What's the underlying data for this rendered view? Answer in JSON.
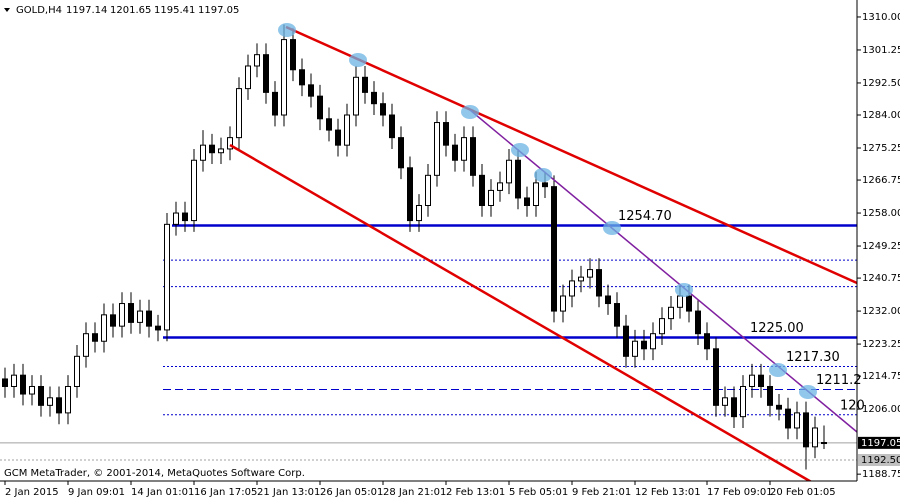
{
  "chart_data": {
    "type": "candlestick",
    "symbol": "GOLD,H4",
    "footer": "GCM MetaTrader, © 2001-2014, MetaQuotes Software Corp.",
    "categories": [
      "2 Jan 2015",
      null,
      null,
      null,
      null,
      null,
      null,
      "9 Jan 09:01",
      null,
      null,
      null,
      null,
      null,
      null,
      "14 Jan 01:01",
      null,
      null,
      null,
      null,
      null,
      null,
      "16 Jan 17:05",
      null,
      null,
      null,
      null,
      null,
      null,
      "21 Jan 13:01",
      null,
      null,
      null,
      null,
      null,
      null,
      "26 Jan 05:01",
      null,
      null,
      null,
      null,
      null,
      null,
      "28 Jan 21:01",
      null,
      null,
      null,
      null,
      null,
      null,
      "2 Feb 13:01",
      null,
      null,
      null,
      null,
      null,
      null,
      "5 Feb 05:01",
      null,
      null,
      null,
      null,
      null,
      null,
      "9 Feb 21:01",
      null,
      null,
      null,
      null,
      null,
      null,
      "12 Feb 13:01",
      null,
      null,
      null,
      null,
      null,
      null,
      null,
      "17 Feb 09:01",
      null,
      null,
      null,
      null,
      null,
      null,
      "20 Feb 01:05",
      null,
      null,
      null,
      null,
      null,
      null
    ],
    "open": [
      1214,
      1212,
      1215,
      1210,
      1212,
      1207,
      1209,
      1205,
      1212,
      1220,
      1226,
      1224,
      1231,
      1228,
      1234,
      1229,
      1232,
      1228,
      1227,
      1255,
      1258,
      1256,
      1272,
      1276,
      1274,
      1275,
      1278,
      1291,
      1297,
      1300,
      1290,
      1284,
      1304,
      1296,
      1292,
      1289,
      1283,
      1280,
      1276,
      1284,
      1294,
      1290,
      1287,
      1284,
      1278,
      1270,
      1256,
      1260,
      1268,
      1282,
      1276,
      1272,
      1278,
      1268,
      1260,
      1264,
      1266,
      1272,
      1262,
      1260,
      1266,
      1265,
      1232,
      1236,
      1240,
      1241,
      1243,
      1236,
      1234,
      1228,
      1220,
      1224,
      1222,
      1226,
      1230,
      1233,
      1236,
      1232,
      1226,
      1222,
      1207,
      1209,
      1204,
      1212,
      1215,
      1212,
      1207,
      1206,
      1201,
      1205,
      1196,
      1197.14
    ],
    "high": [
      1217,
      1218,
      1218,
      1215,
      1215,
      1212,
      1212,
      1215,
      1223,
      1229,
      1229,
      1234,
      1234,
      1237,
      1237,
      1235,
      1235,
      1231,
      1258,
      1261,
      1261,
      1275,
      1280,
      1279,
      1278,
      1281,
      1294,
      1300,
      1303,
      1303,
      1293,
      1308,
      1307,
      1299,
      1295,
      1292,
      1286,
      1283,
      1287,
      1297,
      1297,
      1293,
      1290,
      1287,
      1281,
      1273,
      1263,
      1271,
      1285,
      1285,
      1279,
      1281,
      1281,
      1271,
      1267,
      1269,
      1275,
      1275,
      1265,
      1269,
      1269,
      1268,
      1239,
      1243,
      1244,
      1246,
      1246,
      1239,
      1237,
      1231,
      1227,
      1227,
      1229,
      1233,
      1236,
      1239,
      1239,
      1235,
      1229,
      1225,
      1212,
      1212,
      1215,
      1218,
      1218,
      1215,
      1210,
      1209,
      1208,
      1208,
      1204,
      1201.65
    ],
    "low": [
      1209,
      1209,
      1207,
      1207,
      1204,
      1204,
      1202,
      1202,
      1209,
      1217,
      1221,
      1221,
      1225,
      1225,
      1226,
      1226,
      1225,
      1224,
      1224,
      1252,
      1253,
      1253,
      1269,
      1271,
      1271,
      1272,
      1275,
      1288,
      1294,
      1287,
      1281,
      1281,
      1293,
      1289,
      1286,
      1280,
      1277,
      1273,
      1273,
      1281,
      1287,
      1284,
      1281,
      1275,
      1267,
      1253,
      1253,
      1257,
      1265,
      1273,
      1269,
      1269,
      1265,
      1257,
      1257,
      1261,
      1263,
      1259,
      1257,
      1257,
      1262,
      1229,
      1229,
      1233,
      1237,
      1238,
      1233,
      1231,
      1225,
      1217,
      1217,
      1219,
      1219,
      1223,
      1227,
      1230,
      1229,
      1223,
      1219,
      1204,
      1204,
      1201,
      1201,
      1209,
      1209,
      1204,
      1203,
      1198,
      1198,
      1190,
      1193,
      1195.41
    ],
    "close": [
      1212,
      1215,
      1210,
      1212,
      1207,
      1209,
      1205,
      1212,
      1220,
      1226,
      1224,
      1231,
      1228,
      1234,
      1229,
      1232,
      1228,
      1227,
      1255,
      1258,
      1256,
      1272,
      1276,
      1274,
      1275,
      1278,
      1291,
      1297,
      1300,
      1290,
      1284,
      1304,
      1296,
      1292,
      1289,
      1283,
      1280,
      1276,
      1284,
      1294,
      1290,
      1287,
      1284,
      1278,
      1270,
      1256,
      1260,
      1268,
      1282,
      1276,
      1272,
      1278,
      1268,
      1260,
      1264,
      1266,
      1272,
      1262,
      1260,
      1266,
      1265,
      1232,
      1236,
      1240,
      1241,
      1243,
      1236,
      1234,
      1228,
      1220,
      1224,
      1222,
      1226,
      1230,
      1233,
      1236,
      1232,
      1226,
      1222,
      1207,
      1209,
      1204,
      1212,
      1215,
      1212,
      1207,
      1206,
      1201,
      1205,
      1196,
      1201,
      1197.05
    ],
    "bull_color": "#ffffff",
    "bear_color": "#000000",
    "ylim": [
      1187.2,
      1314.5
    ],
    "yticks": [
      {
        "value": 1310,
        "label": "1310.00"
      },
      {
        "value": 1301.25,
        "label": "1301.25"
      },
      {
        "value": 1292.5,
        "label": "1292.50"
      },
      {
        "value": 1284,
        "label": "1284.00"
      },
      {
        "value": 1275.25,
        "label": "1275.25"
      },
      {
        "value": 1266.75,
        "label": "1266.75"
      },
      {
        "value": 1258,
        "label": "1258.00"
      },
      {
        "value": 1249.25,
        "label": "1249.25"
      },
      {
        "value": 1240.75,
        "label": "1240.75"
      },
      {
        "value": 1232,
        "label": "1232.00"
      },
      {
        "value": 1223.25,
        "label": "1223.25"
      },
      {
        "value": 1214.75,
        "label": "1214.75"
      },
      {
        "value": 1206,
        "label": "1206.00"
      },
      {
        "value": 1188.75,
        "label": "1188.75"
      }
    ],
    "levels": [
      {
        "value": 1254.7,
        "label": "1254.70",
        "style": "solid"
      },
      {
        "value": 1245.5,
        "style": "dotted"
      },
      {
        "value": 1238.5,
        "style": "dotted"
      },
      {
        "value": 1225,
        "label": "1225.00",
        "style": "solid"
      },
      {
        "value": 1217.3,
        "label": "1217.30",
        "style": "dotted"
      },
      {
        "value": 1211.2,
        "label": "1211.2",
        "style": "dashed"
      },
      {
        "value": 1204.5,
        "label": "120",
        "style": "dotted"
      }
    ],
    "price_labels": [
      {
        "value": 1197.05,
        "label": "1197.05",
        "background": "#000000",
        "text_color": "#ffffff"
      },
      {
        "value": 1192.5,
        "label": "1192.50",
        "background": "#c0c0c0",
        "text_color": "#000000"
      }
    ]
  }
}
